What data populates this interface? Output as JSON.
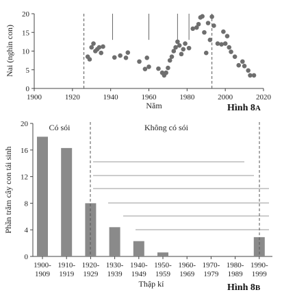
{
  "figures": [
    {
      "caption_main": "Hình 8",
      "caption_suffix": "A"
    },
    {
      "caption_main": "Hình 8",
      "caption_suffix": "B"
    }
  ],
  "chart_data": [
    {
      "type": "scatter",
      "xlabel": "Năm",
      "ylabel": "Nai (nghìn con)",
      "xlim": [
        1900,
        2020
      ],
      "ylim": [
        0,
        20
      ],
      "xticks": [
        1900,
        1920,
        1940,
        1960,
        1980,
        2000,
        2020
      ],
      "yticks": [
        0,
        5,
        10,
        15,
        20
      ],
      "grid": false,
      "markers": {
        "dashed_vlines": [
          1926,
          1993
        ],
        "solid_vlines": [
          1941,
          1960,
          1975,
          1981
        ]
      },
      "series": [
        {
          "points": [
            [
              1928,
              8.5
            ],
            [
              1929,
              7.8
            ],
            [
              1930,
              11
            ],
            [
              1931,
              12
            ],
            [
              1932,
              10
            ],
            [
              1933,
              10.5
            ],
            [
              1934,
              11
            ],
            [
              1935,
              9.5
            ],
            [
              1936,
              11.2
            ],
            [
              1942,
              8.3
            ],
            [
              1945,
              8.8
            ],
            [
              1948,
              8.2
            ],
            [
              1949,
              9.6
            ],
            [
              1955,
              7.2
            ],
            [
              1958,
              5.2
            ],
            [
              1959,
              8.2
            ],
            [
              1960,
              5.8
            ],
            [
              1965,
              5.3
            ],
            [
              1967,
              4.2
            ],
            [
              1968,
              3.5
            ],
            [
              1969,
              4.2
            ],
            [
              1970,
              5.5
            ],
            [
              1971,
              7.5
            ],
            [
              1972,
              8.5
            ],
            [
              1973,
              10
            ],
            [
              1974,
              11
            ],
            [
              1975,
              12.5
            ],
            [
              1976,
              11.5
            ],
            [
              1977,
              9.2
            ],
            [
              1978,
              10.5
            ],
            [
              1979,
              12
            ],
            [
              1981,
              10.8
            ],
            [
              1983,
              16
            ],
            [
              1985,
              16.3
            ],
            [
              1986,
              17.2
            ],
            [
              1987,
              19
            ],
            [
              1988,
              19.3
            ],
            [
              1989,
              15
            ],
            [
              1990,
              9.5
            ],
            [
              1991,
              17.5
            ],
            [
              1992,
              13
            ],
            [
              1993,
              19.2
            ],
            [
              1994,
              16.8
            ],
            [
              1996,
              12
            ],
            [
              1998,
              11.8
            ],
            [
              1999,
              15.2
            ],
            [
              2000,
              12
            ],
            [
              2001,
              14
            ],
            [
              2002,
              11
            ],
            [
              2003,
              9.8
            ],
            [
              2005,
              8.5
            ],
            [
              2007,
              6.2
            ],
            [
              2009,
              7.2
            ],
            [
              2010,
              6
            ],
            [
              2012,
              4.8
            ],
            [
              2013,
              3.5
            ],
            [
              2015,
              3.5
            ]
          ]
        }
      ]
    },
    {
      "type": "bar",
      "xlabel": "Thập kỉ",
      "ylabel": "Phần trăm cây con tái sinh",
      "ylim": [
        0,
        20
      ],
      "yticks": [
        0,
        4,
        8,
        12,
        16,
        20
      ],
      "grid": false,
      "categories": [
        [
          "1900-",
          "1909"
        ],
        [
          "1910-",
          "1919"
        ],
        [
          "1920-",
          "1929"
        ],
        [
          "1930-",
          "1939"
        ],
        [
          "1940-",
          "1949"
        ],
        [
          "1950-",
          "1959"
        ],
        [
          "1960-",
          "1969"
        ],
        [
          "1970-",
          "1979"
        ],
        [
          "1980-",
          "1989"
        ],
        [
          "1990-",
          "1999"
        ]
      ],
      "values": [
        18,
        16.3,
        8,
        4.4,
        2.3,
        0.6,
        0,
        0,
        0,
        2.9
      ],
      "annotations": [
        {
          "text": "Có sói",
          "region": "before wolf removal"
        },
        {
          "text": "Không có sói",
          "region": "after wolf removal"
        }
      ],
      "color": "#8a8a8a"
    }
  ]
}
